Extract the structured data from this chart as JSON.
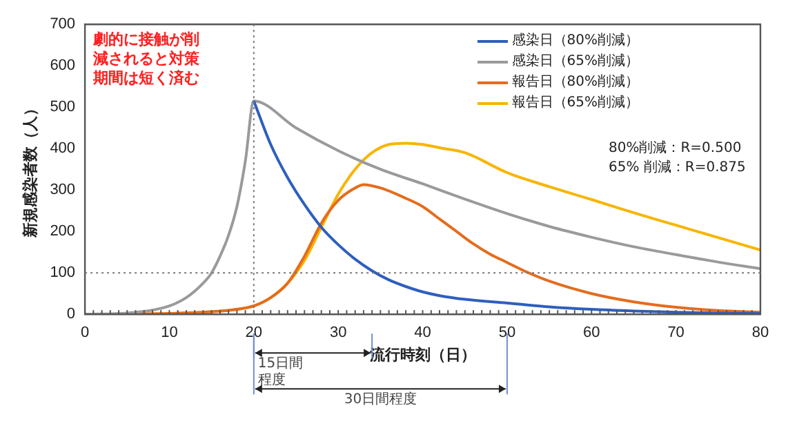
{
  "chart_data": {
    "type": "line",
    "xlabel": "流行時刻（日）",
    "ylabel": "新規感染者数（人）",
    "xlim": [
      0,
      80
    ],
    "xticks": [
      0,
      10,
      20,
      30,
      40,
      50,
      60,
      70,
      80
    ],
    "ylim": [
      0,
      700
    ],
    "yticks": [
      0,
      100,
      200,
      300,
      400,
      500,
      600,
      700
    ],
    "grid": false,
    "legend": "top right",
    "marker": "none",
    "line_style": "solid",
    "series": [
      {
        "name": "感染日（80%削減）",
        "color": "#2e5fbd",
        "x": [
          20,
          22,
          24,
          26,
          28,
          30,
          32,
          34,
          36,
          38,
          40,
          42,
          45,
          50,
          55,
          60,
          65,
          70,
          75,
          80
        ],
        "values": [
          515,
          410,
          330,
          265,
          210,
          168,
          133,
          105,
          83,
          67,
          54,
          45,
          36,
          27,
          18,
          12,
          8,
          5,
          3,
          2
        ]
      },
      {
        "name": "感染日（65%削減）",
        "color": "#9a9a9a",
        "x": [
          0,
          5,
          8,
          10,
          12,
          14,
          15,
          16,
          17,
          18,
          19,
          20,
          25,
          30,
          35,
          40,
          45,
          50,
          55,
          60,
          65,
          70,
          75,
          80
        ],
        "values": [
          0,
          3,
          10,
          20,
          40,
          75,
          100,
          140,
          190,
          260,
          370,
          515,
          450,
          395,
          350,
          315,
          278,
          243,
          212,
          186,
          163,
          144,
          126,
          110
        ]
      },
      {
        "name": "報告日（80%削減）",
        "color": "#e46c1e",
        "x": [
          0,
          10,
          15,
          18,
          20,
          22,
          24,
          26,
          28,
          30,
          32,
          33,
          35,
          38,
          40,
          42,
          44,
          46,
          48,
          50,
          52,
          55,
          60,
          65,
          70,
          75,
          80
        ],
        "values": [
          0,
          2,
          6,
          12,
          20,
          40,
          75,
          140,
          220,
          275,
          305,
          313,
          305,
          280,
          260,
          230,
          200,
          170,
          145,
          125,
          105,
          80,
          50,
          30,
          17,
          9,
          5
        ]
      },
      {
        "name": "報告日（65%削減）",
        "color": "#f7b500",
        "x": [
          0,
          10,
          15,
          18,
          20,
          22,
          24,
          26,
          28,
          30,
          32,
          34,
          36,
          38,
          40,
          42,
          45,
          50,
          55,
          60,
          65,
          70,
          75,
          80
        ],
        "values": [
          0,
          2,
          6,
          12,
          20,
          40,
          75,
          130,
          210,
          290,
          350,
          390,
          410,
          413,
          410,
          402,
          390,
          342,
          308,
          277,
          245,
          215,
          185,
          155
        ]
      }
    ],
    "ref_lines": [
      {
        "axis": "x",
        "value": 20,
        "color": "#777777",
        "line_style": "dotted"
      },
      {
        "axis": "y",
        "value": 100,
        "color": "#777777",
        "line_style": "dotted"
      }
    ],
    "annotations": [
      "劇的に接触が削減されると対策期間は短く済む",
      "80%削減：R=0.500",
      "65% 削減：R=0.875",
      "15日間程度",
      "30日間程度"
    ]
  }
}
